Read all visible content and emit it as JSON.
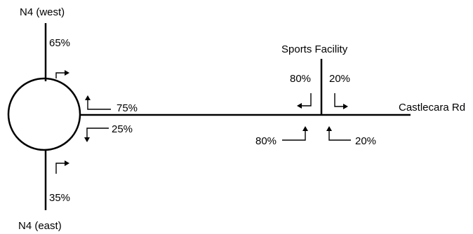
{
  "labels": {
    "n4_west": "N4 (west)",
    "n4_east": "N4 (east)",
    "sports_facility": "Sports Facility",
    "castlecara_rd": "Castlecara Rd"
  },
  "percentages": {
    "west_in": "65%",
    "east_in": "35%",
    "rd_to_roundabout": "75%",
    "roundabout_to_rd": "25%",
    "sports_left": "80%",
    "sports_right": "20%",
    "rd_left": "80%",
    "rd_right": "20%"
  },
  "colors": {
    "stroke": "#000000",
    "background": "#ffffff"
  }
}
